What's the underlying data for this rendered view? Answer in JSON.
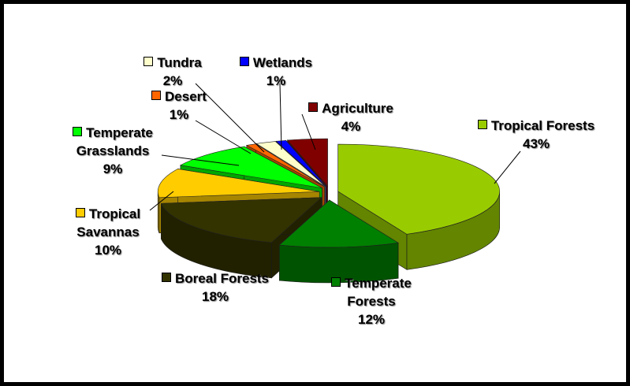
{
  "chart_data": {
    "type": "pie3d",
    "categories": [
      "Tropical Forests",
      "Temperate Forests",
      "Boreal Forests",
      "Tropical Savannas",
      "Temperate Grasslands",
      "Desert",
      "Tundra",
      "Wetlands",
      "Agriculture"
    ],
    "values": [
      43,
      12,
      18,
      10,
      9,
      1,
      2,
      1,
      4
    ],
    "value_labels": [
      "43%",
      "12%",
      "18%",
      "10%",
      "9%",
      "1%",
      "2%",
      "1%",
      "4%"
    ],
    "colors": [
      "#99cc00",
      "#008000",
      "#333300",
      "#ffcc00",
      "#00ff00",
      "#ff6600",
      "#ffffcc",
      "#0000ff",
      "#800000"
    ]
  }
}
